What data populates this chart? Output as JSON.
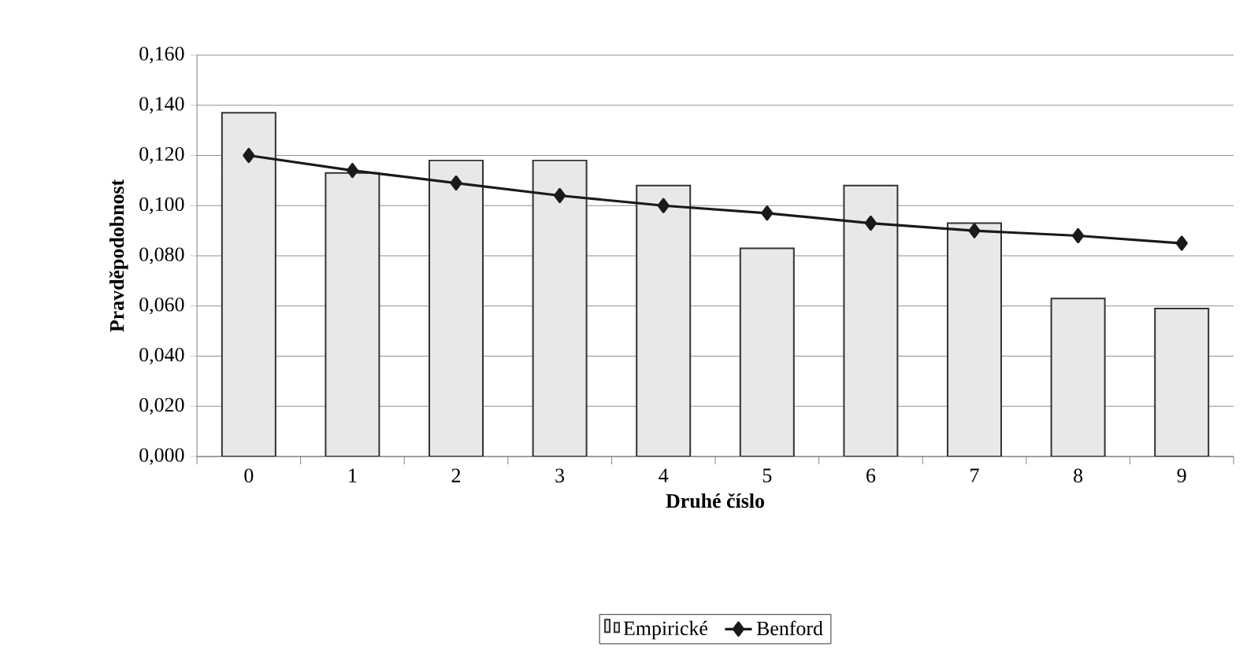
{
  "chart_data": {
    "type": "bar",
    "xlabel": "Druhé číslo",
    "ylabel": "Pravděpodobnost",
    "categories": [
      "0",
      "1",
      "2",
      "3",
      "4",
      "5",
      "6",
      "7",
      "8",
      "9"
    ],
    "series": [
      {
        "name": "Empirické",
        "color": "#e8e8e8",
        "values": [
          0.137,
          0.113,
          0.118,
          0.118,
          0.108,
          0.083,
          0.108,
          0.093,
          0.063,
          0.059
        ]
      },
      {
        "name": "Benford",
        "type": "line",
        "color": "#1a1a1a",
        "marker": "diamond",
        "values": [
          0.12,
          0.114,
          0.109,
          0.104,
          0.1,
          0.097,
          0.093,
          0.09,
          0.088,
          0.085
        ]
      }
    ],
    "ylim": [
      0,
      0.16
    ],
    "yticks": [
      {
        "value": 0,
        "label": "0,000"
      },
      {
        "value": 0.02,
        "label": "0,020"
      },
      {
        "value": 0.04,
        "label": "0,040"
      },
      {
        "value": 0.06,
        "label": "0,060"
      },
      {
        "value": 0.08,
        "label": "0,080"
      },
      {
        "value": 0.1,
        "label": "0,100"
      },
      {
        "value": 0.12,
        "label": "0,120"
      },
      {
        "value": 0.14,
        "label": "0,140"
      },
      {
        "value": 0.16,
        "label": "0,160"
      }
    ],
    "grid": "y",
    "legend": "bottom"
  }
}
